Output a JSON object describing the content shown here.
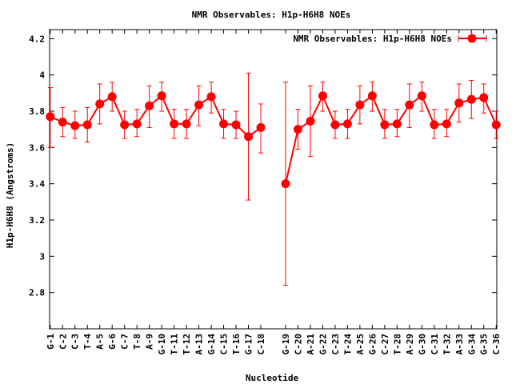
{
  "chart_data": {
    "type": "line",
    "title": "NMR Observables: H1p-H6H8 NOEs",
    "xlabel": "Nucleotide",
    "ylabel": "H1p-H6H8 (Angstroms)",
    "ylim": [
      2.6,
      4.25
    ],
    "yticks": [
      "2.8",
      "3",
      "3.2",
      "3.4",
      "3.6",
      "3.8",
      "4",
      "4.2"
    ],
    "grid": false,
    "legend_position": "top-right",
    "color": "#ff0000",
    "xlim": [
      1,
      37
    ],
    "categories": [
      "G-1",
      "C-2",
      "C-3",
      "T-4",
      "A-5",
      "G-6",
      "C-7",
      "T-8",
      "A-9",
      "G-10",
      "T-11",
      "T-12",
      "A-13",
      "G-14",
      "C-15",
      "T-16",
      "G-17",
      "C-18",
      "G-19",
      "C-20",
      "A-21",
      "G-22",
      "C-23",
      "T-24",
      "A-25",
      "G-26",
      "C-27",
      "T-28",
      "A-29",
      "G-30",
      "C-31",
      "T-32",
      "A-33",
      "G-34",
      "G-35",
      "C-36"
    ],
    "x": [
      1,
      2,
      3,
      4,
      5,
      6,
      7,
      8,
      9,
      10,
      11,
      12,
      13,
      14,
      15,
      16,
      17,
      18,
      20,
      21,
      22,
      23,
      24,
      25,
      26,
      27,
      28,
      29,
      30,
      31,
      32,
      33,
      34,
      35,
      36,
      37
    ],
    "series": [
      {
        "name": "NMR Observables: H1p-H6H8 NOEs",
        "values": [
          3.77,
          3.74,
          3.72,
          3.725,
          3.84,
          3.88,
          3.725,
          3.73,
          3.83,
          3.885,
          3.73,
          3.73,
          3.835,
          3.88,
          3.73,
          3.725,
          3.66,
          3.71,
          3.4,
          3.7,
          3.745,
          3.885,
          3.725,
          3.73,
          3.835,
          3.885,
          3.725,
          3.73,
          3.835,
          3.885,
          3.725,
          3.73,
          3.845,
          3.865,
          3.875,
          3.725
        ],
        "err_low": [
          3.6,
          3.66,
          3.65,
          3.63,
          3.73,
          3.8,
          3.65,
          3.66,
          3.71,
          3.8,
          3.65,
          3.65,
          3.72,
          3.79,
          3.65,
          3.65,
          3.31,
          3.57,
          2.84,
          3.59,
          3.55,
          3.8,
          3.65,
          3.65,
          3.73,
          3.8,
          3.65,
          3.66,
          3.71,
          3.8,
          3.65,
          3.66,
          3.74,
          3.76,
          3.79,
          3.65
        ],
        "err_high": [
          3.93,
          3.82,
          3.8,
          3.82,
          3.95,
          3.96,
          3.8,
          3.81,
          3.94,
          3.96,
          3.81,
          3.81,
          3.94,
          3.96,
          3.81,
          3.8,
          4.01,
          3.84,
          3.96,
          3.81,
          3.94,
          3.96,
          3.8,
          3.81,
          3.94,
          3.96,
          3.81,
          3.81,
          3.95,
          3.96,
          3.81,
          3.81,
          3.95,
          3.97,
          3.95,
          3.8
        ]
      }
    ]
  }
}
